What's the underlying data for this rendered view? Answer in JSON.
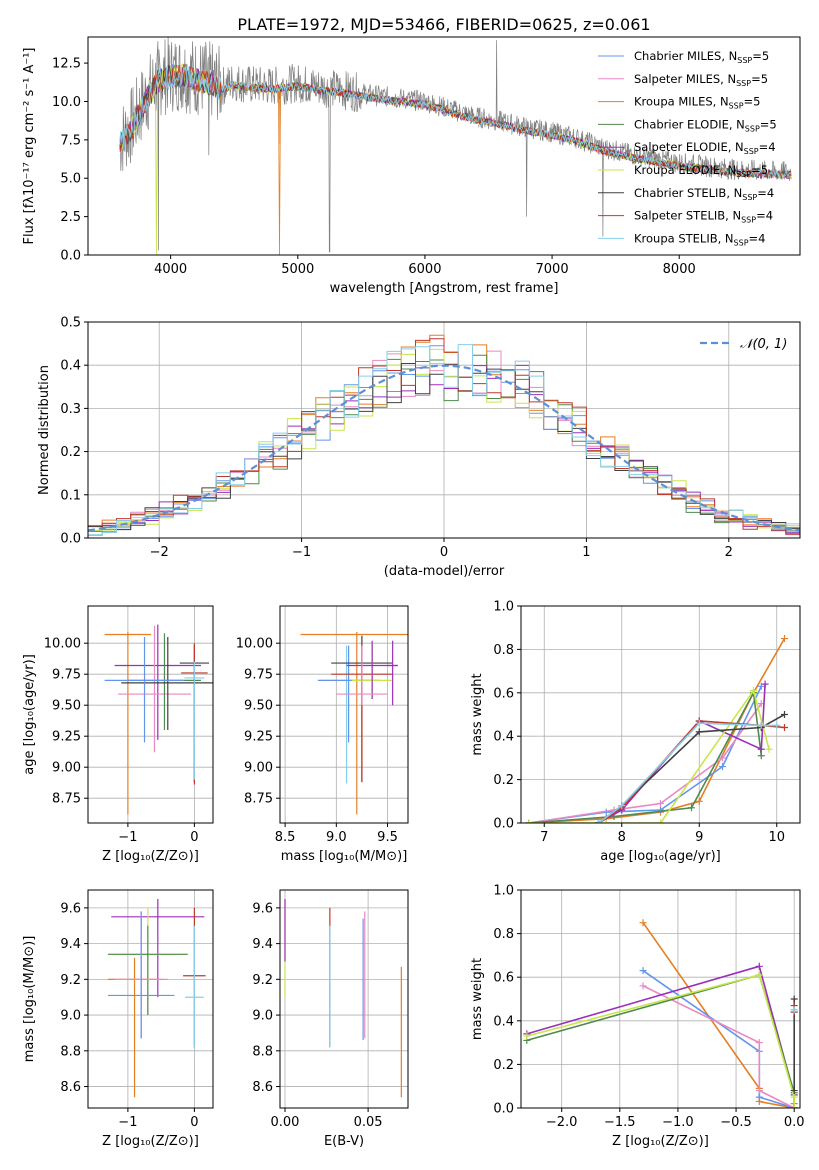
{
  "figure_title": "PLATE=1972, MJD=53466, FIBERID=0625, z=0.061",
  "chart_data": [
    {
      "id": "spectrum",
      "type": "line",
      "title": "PLATE=1972, MJD=53466, FIBERID=0625, z=0.061",
      "xlabel": "wavelength [Angstrom, rest frame]",
      "ylabel": "Flux [fλ10⁻¹⁷ erg cm⁻² s⁻¹ A⁻¹]",
      "xlim": [
        3350,
        8950
      ],
      "ylim": [
        0,
        14.2
      ],
      "xticks": [
        4000,
        5000,
        6000,
        7000,
        8000
      ],
      "yticks": [
        0.0,
        2.5,
        5.0,
        7.5,
        10.0,
        12.5
      ],
      "legend_position": "top-right",
      "data_envelope": {
        "x": [
          3600,
          3700,
          3800,
          3900,
          4000,
          4100,
          4200,
          4300,
          4400,
          4500,
          4600,
          4800,
          5000,
          5200,
          5400,
          5600,
          5800,
          6000,
          6200,
          6400,
          6600,
          6800,
          7000,
          7200,
          7400,
          7600,
          7800,
          8000,
          8200,
          8400,
          8600,
          8900
        ],
        "y": [
          7.4,
          8.5,
          10.2,
          11.5,
          11.8,
          11.9,
          11.6,
          11.4,
          11.0,
          11.3,
          11.1,
          11.0,
          11.2,
          10.9,
          10.7,
          10.4,
          10.2,
          10.0,
          9.5,
          9.0,
          8.7,
          8.3,
          8.0,
          7.6,
          7.0,
          6.6,
          6.3,
          6.0,
          5.8,
          5.6,
          5.5,
          5.4
        ]
      },
      "series": [
        {
          "name": "Chabrier MILES, N_SSP=5",
          "label": "Chabrier MILES, N",
          "sub": "SSP",
          "suffix": "=5",
          "color": "#6495ED"
        },
        {
          "name": "Salpeter MILES, N_SSP=5",
          "label": "Salpeter MILES, N",
          "sub": "SSP",
          "suffix": "=5",
          "color": "#E78AC3"
        },
        {
          "name": "Kroupa MILES, N_SSP=5",
          "label": "Kroupa MILES, N",
          "sub": "SSP",
          "suffix": "=5",
          "color": "#E67E22"
        },
        {
          "name": "Chabrier ELODIE, N_SSP=5",
          "label": "Chabrier ELODIE, N",
          "sub": "SSP",
          "suffix": "=5",
          "color": "#4F8A4F"
        },
        {
          "name": "Salpeter ELODIE, N_SSP=4",
          "label": "Salpeter ELODIE, N",
          "sub": "SSP",
          "suffix": "=4",
          "color": "#9B30B8"
        },
        {
          "name": "Kroupa ELODIE, N_SSP=5",
          "label": "Kroupa ELODIE, N",
          "sub": "SSP",
          "suffix": "=5",
          "color": "#C8E64A"
        },
        {
          "name": "Chabrier STELIB, N_SSP=4",
          "label": "Chabrier STELIB, N",
          "sub": "SSP",
          "suffix": "=4",
          "color": "#404040"
        },
        {
          "name": "Salpeter STELIB, N_SSP=4",
          "label": "Salpeter STELIB, N",
          "sub": "SSP",
          "suffix": "=4",
          "color": "#C0392B"
        },
        {
          "name": "Kroupa STELIB, N_SSP=4",
          "label": "Kroupa STELIB, N",
          "sub": "SSP",
          "suffix": "=4",
          "color": "#87CEEB"
        }
      ]
    },
    {
      "id": "residuals",
      "type": "line",
      "xlabel": "(data-model)/error",
      "ylabel": "Normed distribution",
      "xlim": [
        -2.5,
        2.5
      ],
      "ylim": [
        0,
        0.5
      ],
      "xticks": [
        -2,
        -1,
        0,
        1,
        2
      ],
      "yticks": [
        0.0,
        0.1,
        0.2,
        0.3,
        0.4,
        0.5
      ],
      "grid": true,
      "legend_position": "top-right",
      "legend": "𝒩(0, 1)",
      "normal_color": "#5B8FD6",
      "bin_width": 0.1
    },
    {
      "id": "age-vs-Z",
      "type": "scatter",
      "xlabel": "Z [log₁₀(Z/Z⊙)]",
      "ylabel": "age  [log₁₀(age/yr)]",
      "xlim": [
        -1.6,
        0.28
      ],
      "ylim": [
        8.55,
        10.3
      ],
      "xticks": [
        -1,
        0
      ],
      "yticks": [
        8.75,
        9.0,
        9.25,
        9.5,
        9.75,
        10.0
      ],
      "grid": true,
      "points": [
        {
          "x": -1.0,
          "xerr": 0.35,
          "y": 10.07,
          "ylo": 8.62,
          "yhi": 10.09,
          "color": "#E67E22"
        },
        {
          "x": -0.55,
          "xerr": 0.65,
          "y": 9.82,
          "ylo": 9.22,
          "yhi": 10.15,
          "color": "#9B30B8"
        },
        {
          "x": -0.6,
          "xerr": 0.55,
          "y": 9.59,
          "ylo": 9.12,
          "yhi": 10.14,
          "color": "#E78AC3"
        },
        {
          "x": -0.45,
          "xerr": 0.55,
          "y": 9.7,
          "ylo": 9.3,
          "yhi": 10.08,
          "color": "#4F8A4F"
        },
        {
          "x": -0.4,
          "xerr": 0.7,
          "y": 9.68,
          "ylo": 9.3,
          "yhi": 10.05,
          "color": "#404040"
        },
        {
          "x": 0.0,
          "xerr": 0.22,
          "y": 9.84,
          "ylo": 8.88,
          "yhi": 9.98,
          "color": "#404040"
        },
        {
          "x": 0.0,
          "xerr": 0.2,
          "y": 9.76,
          "ylo": 8.86,
          "yhi": 10.0,
          "color": "#C0392B"
        },
        {
          "x": 0.0,
          "xerr": 0.15,
          "y": 9.72,
          "ylo": 8.9,
          "yhi": 9.85,
          "color": "#87CEEB"
        },
        {
          "x": -0.75,
          "xerr": 0.6,
          "y": 9.7,
          "ylo": 9.2,
          "yhi": 10.05,
          "color": "#6495ED"
        }
      ]
    },
    {
      "id": "age-vs-mass",
      "type": "scatter",
      "xlabel": "mass [log₁₀(M/M⊙)]",
      "xlim": [
        8.45,
        9.7
      ],
      "ylim": [
        8.55,
        10.3
      ],
      "xticks": [
        8.5,
        9.0,
        9.5
      ],
      "yticks": [
        8.75,
        9.0,
        9.25,
        9.5,
        9.75,
        10.0
      ],
      "grid": true,
      "points": [
        {
          "x": 9.2,
          "xerr": 0.55,
          "y": 10.07,
          "ylo": 8.62,
          "yhi": 10.09,
          "color": "#E67E22"
        },
        {
          "x": 9.1,
          "xerr": 0.25,
          "y": 9.7,
          "ylo": 8.87,
          "yhi": 9.98,
          "color": "#87CEEB"
        },
        {
          "x": 9.12,
          "xerr": 0.3,
          "y": 9.7,
          "ylo": 9.2,
          "yhi": 9.98,
          "color": "#6495ED"
        },
        {
          "x": 9.25,
          "xerr": 0.3,
          "y": 9.84,
          "ylo": 8.88,
          "yhi": 10.06,
          "color": "#404040"
        },
        {
          "x": 9.25,
          "xerr": 0.3,
          "y": 9.75,
          "ylo": 8.88,
          "yhi": 10.0,
          "color": "#C0392B"
        },
        {
          "x": 9.35,
          "xerr": 0.2,
          "y": 9.7,
          "ylo": 9.55,
          "yhi": 10.0,
          "color": "#C8E64A"
        },
        {
          "x": 9.35,
          "xerr": 0.25,
          "y": 9.82,
          "ylo": 9.55,
          "yhi": 10.02,
          "color": "#9B30B8"
        },
        {
          "x": 9.25,
          "xerr": 0.25,
          "y": 9.59,
          "ylo": 9.5,
          "yhi": 9.98,
          "color": "#E78AC3"
        },
        {
          "x": 9.55,
          "xerr": 0.05,
          "y": 9.82,
          "ylo": 9.5,
          "yhi": 10.02,
          "color": "#9B30B8"
        }
      ]
    },
    {
      "id": "weight-vs-age",
      "type": "line",
      "xlabel": "age  [log₁₀(age/yr)]",
      "ylabel": "mass weight",
      "xlim": [
        6.7,
        10.3
      ],
      "ylim": [
        0,
        1.0
      ],
      "xticks": [
        7,
        8,
        9,
        10
      ],
      "yticks": [
        0.0,
        0.2,
        0.4,
        0.6,
        0.8,
        1.0
      ],
      "grid": true,
      "series": [
        {
          "color": "#E67E22",
          "x": [
            6.8,
            7.8,
            8.5,
            9.0,
            9.7,
            10.1
          ],
          "y": [
            0.0,
            0.02,
            0.05,
            0.1,
            0.6,
            0.85
          ]
        },
        {
          "color": "#6495ED",
          "x": [
            6.8,
            7.8,
            8.5,
            9.3,
            9.8
          ],
          "y": [
            0.0,
            0.05,
            0.06,
            0.26,
            0.63
          ]
        },
        {
          "color": "#E78AC3",
          "x": [
            6.8,
            7.9,
            8.5,
            9.3,
            9.8
          ],
          "y": [
            0.0,
            0.06,
            0.09,
            0.3,
            0.55
          ]
        },
        {
          "color": "#4F8A4F",
          "x": [
            6.8,
            7.9,
            8.9,
            9.7,
            9.8
          ],
          "y": [
            0.0,
            0.03,
            0.07,
            0.6,
            0.31
          ]
        },
        {
          "color": "#9B30B8",
          "x": [
            7.7,
            8.0,
            9.0,
            9.8,
            9.85
          ],
          "y": [
            0.0,
            0.06,
            0.47,
            0.34,
            0.64
          ]
        },
        {
          "color": "#C8E64A",
          "x": [
            6.8,
            7.8,
            8.5,
            9.7,
            9.9
          ],
          "y": [
            0.0,
            0.0,
            0.0,
            0.61,
            0.34
          ]
        },
        {
          "color": "#404040",
          "x": [
            7.7,
            8.0,
            9.0,
            9.8,
            10.1
          ],
          "y": [
            0.0,
            0.08,
            0.42,
            0.44,
            0.5
          ]
        },
        {
          "color": "#C0392B",
          "x": [
            7.7,
            8.0,
            9.0,
            9.8,
            10.1
          ],
          "y": [
            0.0,
            0.07,
            0.47,
            0.45,
            0.44
          ]
        },
        {
          "color": "#87CEEB",
          "x": [
            7.7,
            8.0,
            9.0,
            9.8,
            10.0
          ],
          "y": [
            0.0,
            0.08,
            0.46,
            0.45,
            0.45
          ]
        }
      ]
    },
    {
      "id": "mass-vs-Z",
      "type": "scatter",
      "xlabel": "Z [log₁₀(Z/Z⊙)]",
      "ylabel": "mass [log₁₀(M/M⊙)]",
      "xlim": [
        -1.6,
        0.28
      ],
      "ylim": [
        8.48,
        9.7
      ],
      "xticks": [
        -1,
        0
      ],
      "yticks": [
        8.6,
        8.8,
        9.0,
        9.2,
        9.4,
        9.6
      ],
      "grid": true,
      "points": [
        {
          "x": -0.55,
          "xerr": 0.7,
          "y": 9.55,
          "ylo": 9.1,
          "yhi": 9.65,
          "color": "#9B30B8"
        },
        {
          "x": -0.7,
          "xerr": 0.6,
          "y": 9.34,
          "ylo": 9.0,
          "yhi": 9.6,
          "color": "#C8E64A"
        },
        {
          "x": -0.7,
          "xerr": 0.6,
          "y": 9.34,
          "ylo": 9.0,
          "yhi": 9.5,
          "color": "#4F8A4F"
        },
        {
          "x": -0.9,
          "xerr": 0.4,
          "y": 9.2,
          "ylo": 8.54,
          "yhi": 9.32,
          "color": "#E67E22"
        },
        {
          "x": -0.8,
          "xerr": 0.4,
          "y": 9.2,
          "ylo": 8.87,
          "yhi": 9.58,
          "color": "#E78AC3"
        },
        {
          "x": -0.8,
          "xerr": 0.5,
          "y": 9.11,
          "ylo": 8.87,
          "yhi": 9.58,
          "color": "#6495ED"
        },
        {
          "x": 0.0,
          "xerr": 0.17,
          "y": 9.22,
          "ylo": 8.82,
          "yhi": 9.6,
          "color": "#C0392B"
        },
        {
          "x": 0.0,
          "xerr": 0.14,
          "y": 9.1,
          "ylo": 8.82,
          "yhi": 9.5,
          "color": "#87CEEB"
        }
      ]
    },
    {
      "id": "mass-vs-EBV",
      "type": "scatter",
      "xlabel": "E(B-V)",
      "xlim": [
        -0.003,
        0.074
      ],
      "ylim": [
        8.48,
        9.7
      ],
      "xticks": [
        0.0,
        0.05
      ],
      "yticks": [
        8.6,
        8.8,
        9.0,
        9.2,
        9.4,
        9.6
      ],
      "grid": true,
      "points": [
        {
          "x": 0.0,
          "ylo": 9.1,
          "yhi": 9.65,
          "color": "#C8E64A"
        },
        {
          "x": 0.0,
          "ylo": 9.3,
          "yhi": 9.65,
          "color": "#9B30B8"
        },
        {
          "x": 0.027,
          "ylo": 8.82,
          "yhi": 9.6,
          "color": "#C0392B"
        },
        {
          "x": 0.027,
          "ylo": 8.82,
          "yhi": 9.5,
          "color": "#87CEEB"
        },
        {
          "x": 0.047,
          "ylo": 8.86,
          "yhi": 9.54,
          "color": "#6495ED"
        },
        {
          "x": 0.048,
          "ylo": 8.87,
          "yhi": 9.58,
          "color": "#E78AC3"
        },
        {
          "x": 0.07,
          "ylo": 8.54,
          "yhi": 9.27,
          "color": "#E67E22"
        }
      ]
    },
    {
      "id": "weight-vs-Z",
      "type": "line",
      "xlabel": "Z [log₁₀(Z/Z⊙)]",
      "ylabel": "mass weight",
      "xlim": [
        -2.35,
        0.05
      ],
      "ylim": [
        0,
        1.0
      ],
      "xticks": [
        -2.0,
        -1.5,
        -1.0,
        -0.5,
        0.0
      ],
      "yticks": [
        0.0,
        0.2,
        0.4,
        0.6,
        0.8,
        1.0
      ],
      "grid": true,
      "series": [
        {
          "color": "#E67E22",
          "x": [
            -1.3,
            -0.3,
            -0.3,
            0.0,
            0.0
          ],
          "y": [
            0.85,
            0.09,
            0.03,
            0.0,
            0.02
          ]
        },
        {
          "color": "#6495ED",
          "x": [
            -1.3,
            -0.3,
            -0.3,
            0.0,
            0.0
          ],
          "y": [
            0.63,
            0.26,
            0.05,
            0.0,
            0.06
          ]
        },
        {
          "color": "#E78AC3",
          "x": [
            -1.3,
            -0.3,
            -0.3,
            0.0,
            0.0
          ],
          "y": [
            0.56,
            0.3,
            0.08,
            0.0,
            0.06
          ]
        },
        {
          "color": "#9B30B8",
          "x": [
            -2.3,
            -0.3,
            0.0,
            0.0
          ],
          "y": [
            0.34,
            0.65,
            0.06,
            0.0
          ]
        },
        {
          "color": "#4F8A4F",
          "x": [
            -2.3,
            -0.3,
            0.0,
            0.0
          ],
          "y": [
            0.31,
            0.61,
            0.07,
            0.0
          ]
        },
        {
          "color": "#C8E64A",
          "x": [
            -2.3,
            -0.3,
            0.0,
            0.0
          ],
          "y": [
            0.33,
            0.61,
            0.05,
            0.0
          ]
        },
        {
          "color": "#404040",
          "x": [
            0.0,
            0.0,
            0.0
          ],
          "y": [
            0.5,
            0.44,
            0.08
          ]
        },
        {
          "color": "#C0392B",
          "x": [
            0.0,
            0.0
          ],
          "y": [
            0.47,
            0.44
          ]
        },
        {
          "color": "#87CEEB",
          "x": [
            0.0,
            0.0
          ],
          "y": [
            0.45,
            0.45
          ]
        }
      ]
    }
  ]
}
